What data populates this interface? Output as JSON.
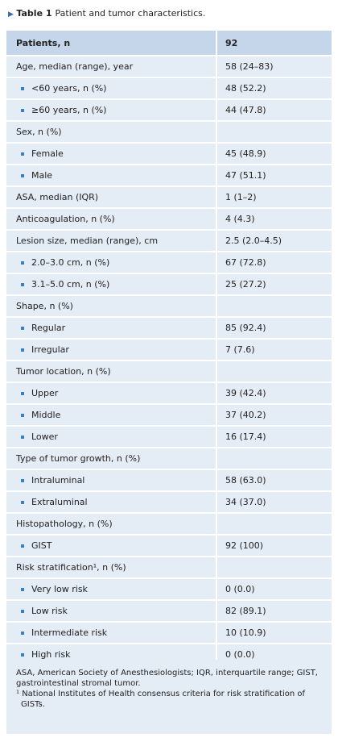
{
  "caption": {
    "label": "Table 1",
    "text": "Patient and tumor characteristics."
  },
  "table": {
    "header": [
      "Patients, n",
      "92"
    ],
    "rows": [
      {
        "label": "Age, median (range), year",
        "value": "58 (24–83)",
        "items": [
          {
            "label": "<60 years, n (%)",
            "value": "48 (52.2)"
          },
          {
            "label": "≥60 years, n (%)",
            "value": "44 (47.8)"
          }
        ]
      },
      {
        "label": "Sex, n (%)",
        "items": [
          {
            "label": "Female",
            "value": "45 (48.9)"
          },
          {
            "label": "Male",
            "value": "47 (51.1)"
          }
        ]
      },
      {
        "label": "ASA, median (IQR)",
        "value": "1 (1–2)"
      },
      {
        "label": "Anticoagulation, n (%)",
        "value": "4 (4.3)"
      },
      {
        "label": "Lesion size, median (range), cm",
        "value": "2.5 (2.0–4.5)",
        "items": [
          {
            "label": "2.0–3.0 cm, n (%)",
            "value": "67 (72.8)"
          },
          {
            "label": "3.1–5.0 cm, n (%)",
            "value": "25 (27.2)"
          }
        ]
      },
      {
        "label": "Shape, n (%)",
        "items": [
          {
            "label": "Regular",
            "value": "85 (92.4)"
          },
          {
            "label": "Irregular",
            "value": "7 (7.6)"
          }
        ]
      },
      {
        "label": "Tumor location, n (%)",
        "items": [
          {
            "label": "Upper",
            "value": "39 (42.4)"
          },
          {
            "label": "Middle",
            "value": "37 (40.2)"
          },
          {
            "label": "Lower",
            "value": "16 (17.4)"
          }
        ]
      },
      {
        "label": "Type of tumor growth, n (%)",
        "items": [
          {
            "label": "Intraluminal",
            "value": "58 (63.0)"
          },
          {
            "label": "Extraluminal",
            "value": "34 (37.0)"
          }
        ]
      },
      {
        "label": "Histopathology, n (%)",
        "items": [
          {
            "label": "GIST",
            "value": "92 (100)"
          }
        ]
      },
      {
        "label": "Risk stratification¹, n (%)",
        "items": [
          {
            "label": "Very low risk",
            "value": "0 (0.0)"
          },
          {
            "label": "Low risk",
            "value": "82 (89.1)"
          },
          {
            "label": "Intermediate risk",
            "value": "10 (10.9)"
          },
          {
            "label": "High risk",
            "value": "0 (0.0)"
          }
        ]
      }
    ]
  },
  "footnotes": [
    "ASA, American Society of Anesthesiologists; IQR, interquartile range; GIST, gastrointestinal stromal tumor.",
    "¹ National Institutes of Health consensus criteria for risk stratification of GISTs."
  ]
}
